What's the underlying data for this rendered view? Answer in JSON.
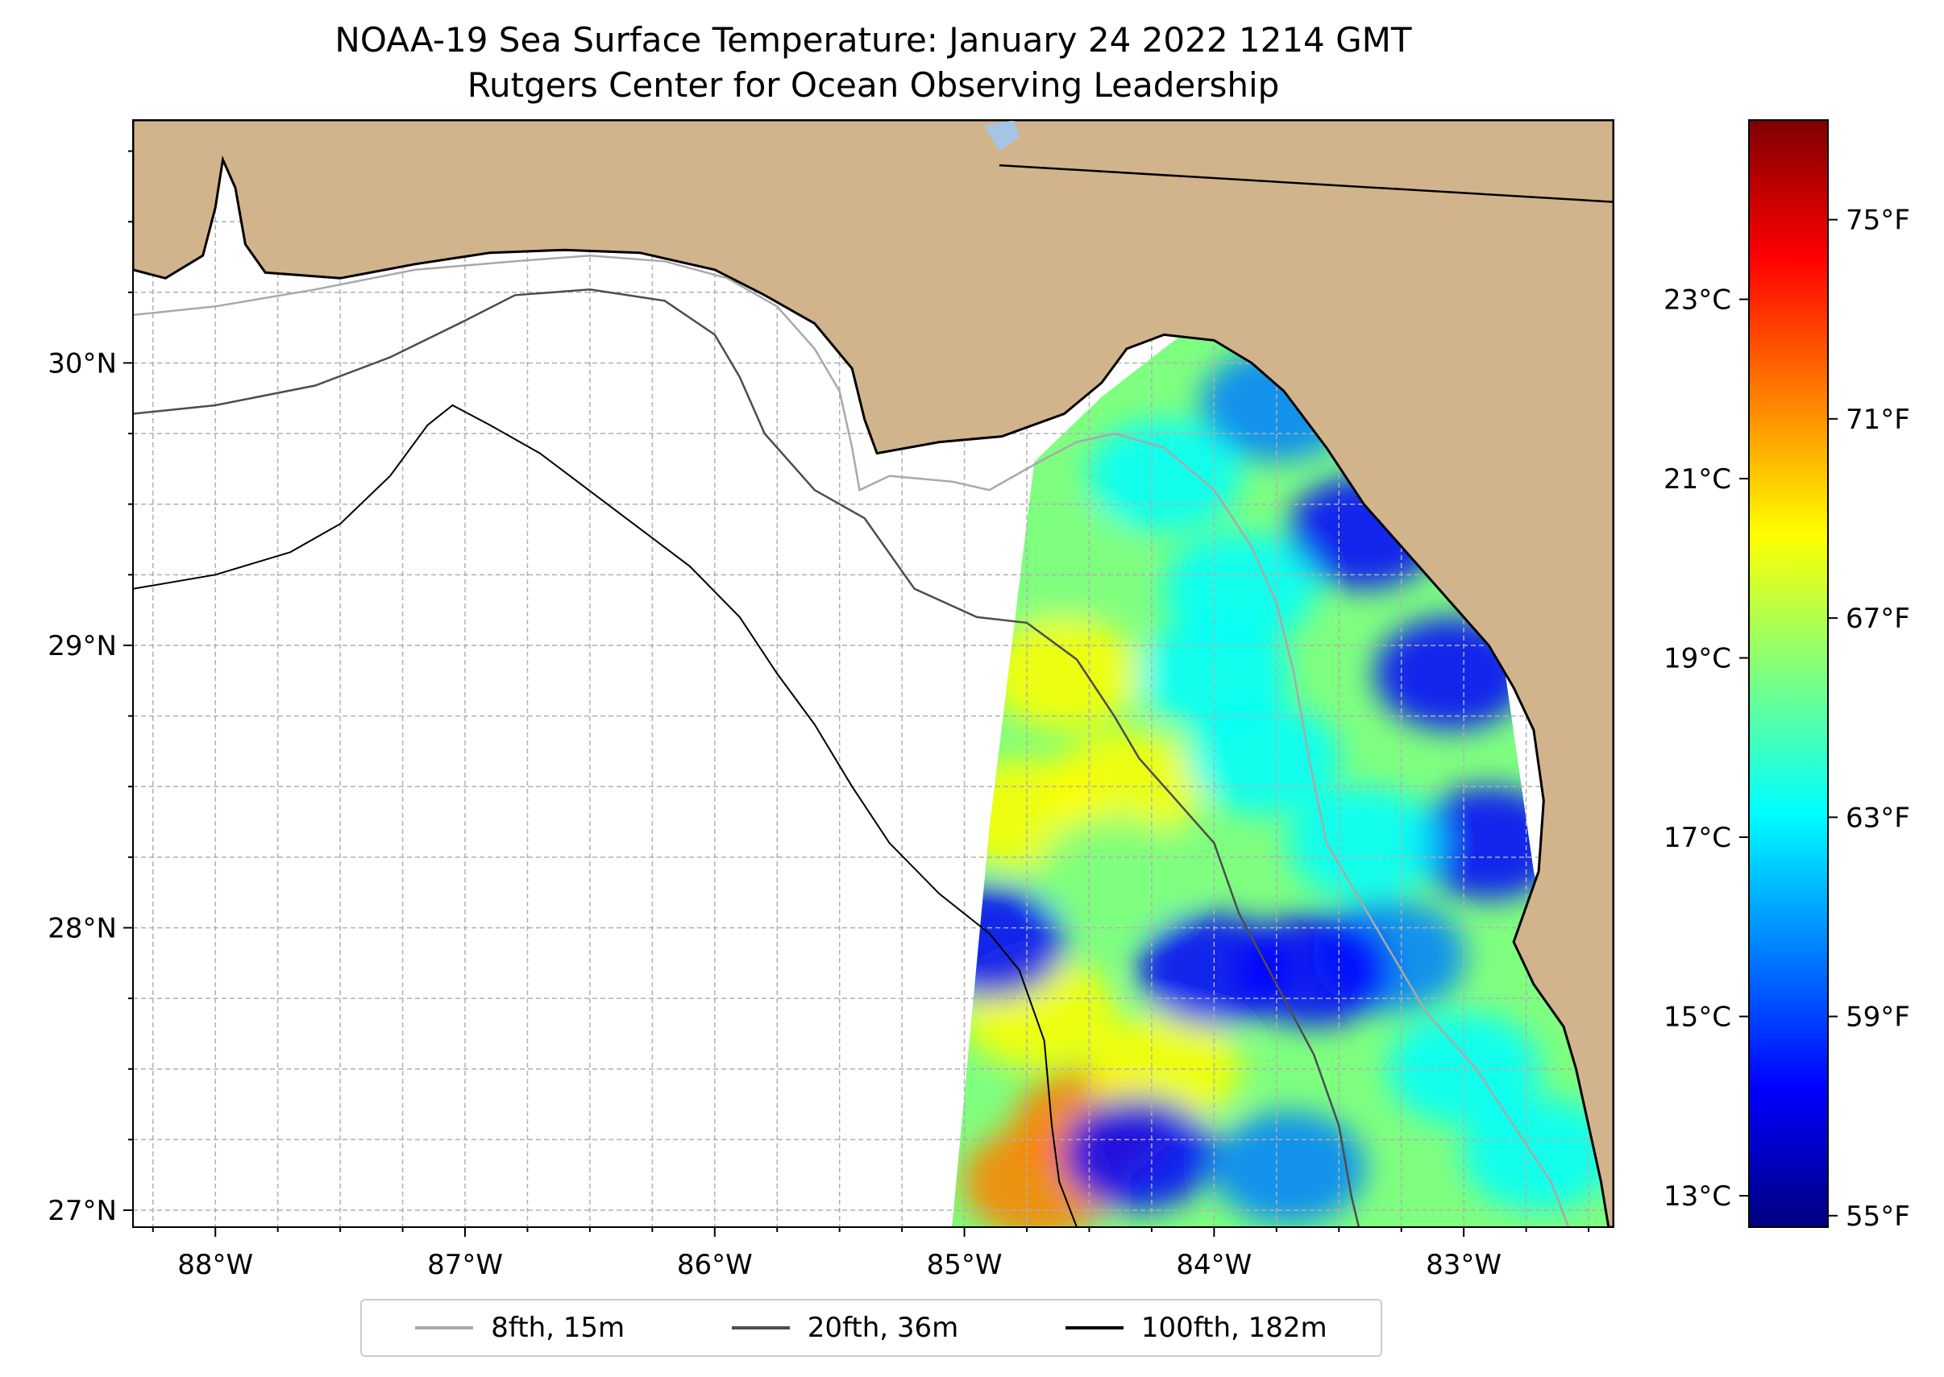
{
  "title": {
    "line1": "NOAA-19 Sea Surface Temperature: January 24 2022 1214 GMT",
    "line2": "Rutgers Center for Ocean Observing Leadership"
  },
  "map": {
    "lon_range": [
      -88.33,
      -82.4
    ],
    "lat_range": [
      26.94,
      30.86
    ],
    "lon_ticks": [
      {
        "value": -88,
        "label": "88°W"
      },
      {
        "value": -87,
        "label": "87°W"
      },
      {
        "value": -86,
        "label": "86°W"
      },
      {
        "value": -85,
        "label": "85°W"
      },
      {
        "value": -84,
        "label": "84°W"
      },
      {
        "value": -83,
        "label": "83°W"
      }
    ],
    "lat_ticks": [
      {
        "value": 30,
        "label": "30°N"
      },
      {
        "value": 29,
        "label": "29°N"
      },
      {
        "value": 28,
        "label": "28°N"
      },
      {
        "value": 27,
        "label": "27°N"
      }
    ],
    "land_color": "#d2b48c",
    "ocean_color": "#ffffff",
    "lake_color": "#a6c4e6",
    "coastline": [
      [
        -88.33,
        30.33
      ],
      [
        -88.2,
        30.3
      ],
      [
        -88.05,
        30.38
      ],
      [
        -88.0,
        30.55
      ],
      [
        -87.97,
        30.72
      ],
      [
        -87.92,
        30.62
      ],
      [
        -87.88,
        30.42
      ],
      [
        -87.8,
        30.32
      ],
      [
        -87.5,
        30.3
      ],
      [
        -87.2,
        30.35
      ],
      [
        -86.9,
        30.39
      ],
      [
        -86.6,
        30.4
      ],
      [
        -86.3,
        30.39
      ],
      [
        -86.0,
        30.33
      ],
      [
        -85.8,
        30.24
      ],
      [
        -85.6,
        30.14
      ],
      [
        -85.45,
        29.98
      ],
      [
        -85.4,
        29.8
      ],
      [
        -85.35,
        29.68
      ],
      [
        -85.1,
        29.72
      ],
      [
        -84.85,
        29.74
      ],
      [
        -84.6,
        29.82
      ],
      [
        -84.45,
        29.93
      ],
      [
        -84.35,
        30.05
      ],
      [
        -84.2,
        30.1
      ],
      [
        -84.0,
        30.08
      ],
      [
        -83.85,
        30.0
      ],
      [
        -83.72,
        29.9
      ],
      [
        -83.55,
        29.7
      ],
      [
        -83.4,
        29.5
      ],
      [
        -83.2,
        29.3
      ],
      [
        -83.05,
        29.15
      ],
      [
        -82.9,
        29.0
      ],
      [
        -82.8,
        28.85
      ],
      [
        -82.72,
        28.7
      ],
      [
        -82.68,
        28.45
      ],
      [
        -82.7,
        28.2
      ],
      [
        -82.8,
        27.95
      ],
      [
        -82.72,
        27.8
      ],
      [
        -82.6,
        27.65
      ],
      [
        -82.55,
        27.5
      ],
      [
        -82.5,
        27.3
      ],
      [
        -82.45,
        27.1
      ],
      [
        -82.42,
        26.94
      ],
      [
        -82.4,
        26.94
      ],
      [
        -82.4,
        30.86
      ],
      [
        -88.33,
        30.86
      ]
    ],
    "state_border": [
      [
        -84.86,
        30.7
      ],
      [
        -82.4,
        30.57
      ]
    ],
    "isobaths": [
      {
        "name": "8fth, 15m",
        "color": "#a9a9a9",
        "points": [
          [
            -88.33,
            30.17
          ],
          [
            -88.0,
            30.2
          ],
          [
            -87.6,
            30.26
          ],
          [
            -87.2,
            30.33
          ],
          [
            -86.8,
            30.36
          ],
          [
            -86.5,
            30.38
          ],
          [
            -86.2,
            30.36
          ],
          [
            -85.95,
            30.3
          ],
          [
            -85.75,
            30.2
          ],
          [
            -85.6,
            30.05
          ],
          [
            -85.5,
            29.9
          ],
          [
            -85.45,
            29.7
          ],
          [
            -85.42,
            29.55
          ],
          [
            -85.3,
            29.6
          ],
          [
            -85.05,
            29.58
          ],
          [
            -84.9,
            29.55
          ],
          [
            -84.7,
            29.65
          ],
          [
            -84.55,
            29.72
          ],
          [
            -84.4,
            29.75
          ],
          [
            -84.2,
            29.7
          ],
          [
            -84.0,
            29.55
          ],
          [
            -83.85,
            29.35
          ],
          [
            -83.75,
            29.15
          ],
          [
            -83.68,
            28.9
          ],
          [
            -83.62,
            28.6
          ],
          [
            -83.55,
            28.3
          ],
          [
            -83.35,
            28.0
          ],
          [
            -83.15,
            27.7
          ],
          [
            -82.95,
            27.5
          ],
          [
            -82.8,
            27.3
          ],
          [
            -82.65,
            27.1
          ],
          [
            -82.58,
            26.94
          ]
        ]
      },
      {
        "name": "20fth, 36m",
        "color": "#4d4d4d",
        "points": [
          [
            -88.33,
            29.82
          ],
          [
            -88.0,
            29.85
          ],
          [
            -87.6,
            29.92
          ],
          [
            -87.3,
            30.02
          ],
          [
            -87.0,
            30.15
          ],
          [
            -86.8,
            30.24
          ],
          [
            -86.5,
            30.26
          ],
          [
            -86.2,
            30.22
          ],
          [
            -86.0,
            30.1
          ],
          [
            -85.9,
            29.95
          ],
          [
            -85.8,
            29.75
          ],
          [
            -85.6,
            29.55
          ],
          [
            -85.4,
            29.45
          ],
          [
            -85.2,
            29.2
          ],
          [
            -84.95,
            29.1
          ],
          [
            -84.75,
            29.08
          ],
          [
            -84.55,
            28.95
          ],
          [
            -84.4,
            28.75
          ],
          [
            -84.3,
            28.6
          ],
          [
            -84.15,
            28.45
          ],
          [
            -84.0,
            28.3
          ],
          [
            -83.9,
            28.05
          ],
          [
            -83.75,
            27.8
          ],
          [
            -83.6,
            27.55
          ],
          [
            -83.5,
            27.3
          ],
          [
            -83.45,
            27.05
          ],
          [
            -83.42,
            26.94
          ]
        ]
      },
      {
        "name": "100fth, 182m",
        "color": "#000000",
        "points": [
          [
            -88.33,
            29.2
          ],
          [
            -88.0,
            29.25
          ],
          [
            -87.7,
            29.33
          ],
          [
            -87.5,
            29.43
          ],
          [
            -87.3,
            29.6
          ],
          [
            -87.15,
            29.78
          ],
          [
            -87.05,
            29.85
          ],
          [
            -86.9,
            29.78
          ],
          [
            -86.7,
            29.68
          ],
          [
            -86.4,
            29.48
          ],
          [
            -86.1,
            29.28
          ],
          [
            -85.9,
            29.1
          ],
          [
            -85.75,
            28.9
          ],
          [
            -85.6,
            28.72
          ],
          [
            -85.45,
            28.5
          ],
          [
            -85.3,
            28.3
          ],
          [
            -85.1,
            28.12
          ],
          [
            -84.9,
            27.98
          ],
          [
            -84.78,
            27.85
          ],
          [
            -84.68,
            27.6
          ],
          [
            -84.65,
            27.3
          ],
          [
            -84.62,
            27.1
          ],
          [
            -84.55,
            26.94
          ]
        ]
      }
    ]
  },
  "colorbar": {
    "celsius_ticks": [
      {
        "value": 23,
        "label": "23°C"
      },
      {
        "value": 21,
        "label": "21°C"
      },
      {
        "value": 19,
        "label": "19°C"
      },
      {
        "value": 17,
        "label": "17°C"
      },
      {
        "value": 15,
        "label": "15°C"
      },
      {
        "value": 13,
        "label": "13°C"
      }
    ],
    "fahrenheit_ticks": [
      {
        "value": 75,
        "label": "75°F"
      },
      {
        "value": 71,
        "label": "71°F"
      },
      {
        "value": 67,
        "label": "67°F"
      },
      {
        "value": 63,
        "label": "63°F"
      },
      {
        "value": 59,
        "label": "59°F"
      },
      {
        "value": 55,
        "label": "55°F"
      }
    ],
    "range_celsius": [
      12.65,
      25.0
    ],
    "colormap": [
      "#00007f",
      "#0000ff",
      "#007fff",
      "#00ffff",
      "#7fff7f",
      "#ffff00",
      "#ff7f00",
      "#ff0000",
      "#7f0000"
    ]
  },
  "legend": {
    "items": [
      {
        "label": "8fth, 15m",
        "color": "#a9a9a9"
      },
      {
        "label": "20fth, 36m",
        "color": "#4d4d4d"
      },
      {
        "label": "100fth, 182m",
        "color": "#000000"
      }
    ]
  }
}
